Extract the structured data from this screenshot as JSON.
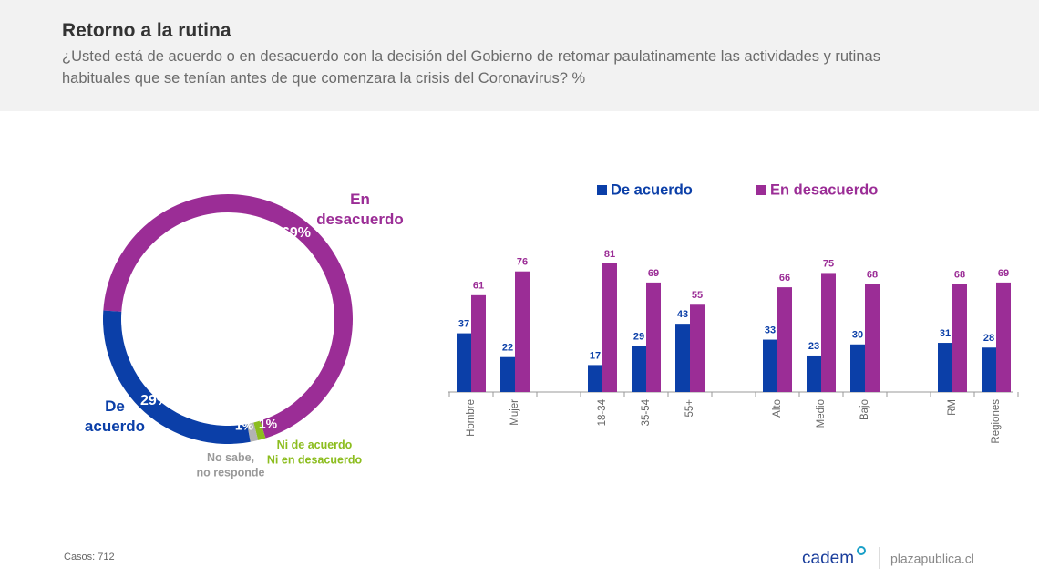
{
  "header": {
    "title": "Retorno a la rutina",
    "subtitle": "¿Usted está de acuerdo o en desacuerdo con la decisión del Gobierno de retomar paulatinamente las actividades y rutinas habituales que se tenían antes de que comenzara la crisis del Coronavirus? %"
  },
  "footer": {
    "note": "Casos: 712",
    "brand": "cadem",
    "site": "plazapublica.cl"
  },
  "chart_data": [
    {
      "type": "pie",
      "categories": [
        "En\ndesacuerdo",
        "Ni de acuerdo\nNi en desacuerdo",
        "No sabe,\nno responde",
        "De\nacuerdo"
      ],
      "values": [
        69,
        1,
        1,
        29
      ],
      "value_labels": [
        "69%",
        "1%",
        "1%",
        "29%"
      ],
      "colors": [
        "#9b2d96",
        "#8cbd1e",
        "#b3b3b3",
        "#0b3fa8"
      ]
    },
    {
      "type": "bar",
      "categories": [
        "Hombre",
        "Mujer",
        "18-34",
        "35-54",
        "55+",
        "Alto",
        "Medio",
        "Bajo",
        "RM",
        "Regiones"
      ],
      "series": [
        {
          "name": "De acuerdo",
          "color": "#0b3fa8",
          "values": [
            37,
            22,
            17,
            29,
            43,
            33,
            23,
            30,
            31,
            28
          ]
        },
        {
          "name": "En desacuerdo",
          "color": "#9b2d96",
          "values": [
            61,
            76,
            81,
            69,
            55,
            66,
            75,
            68,
            68,
            69
          ]
        }
      ]
    }
  ]
}
